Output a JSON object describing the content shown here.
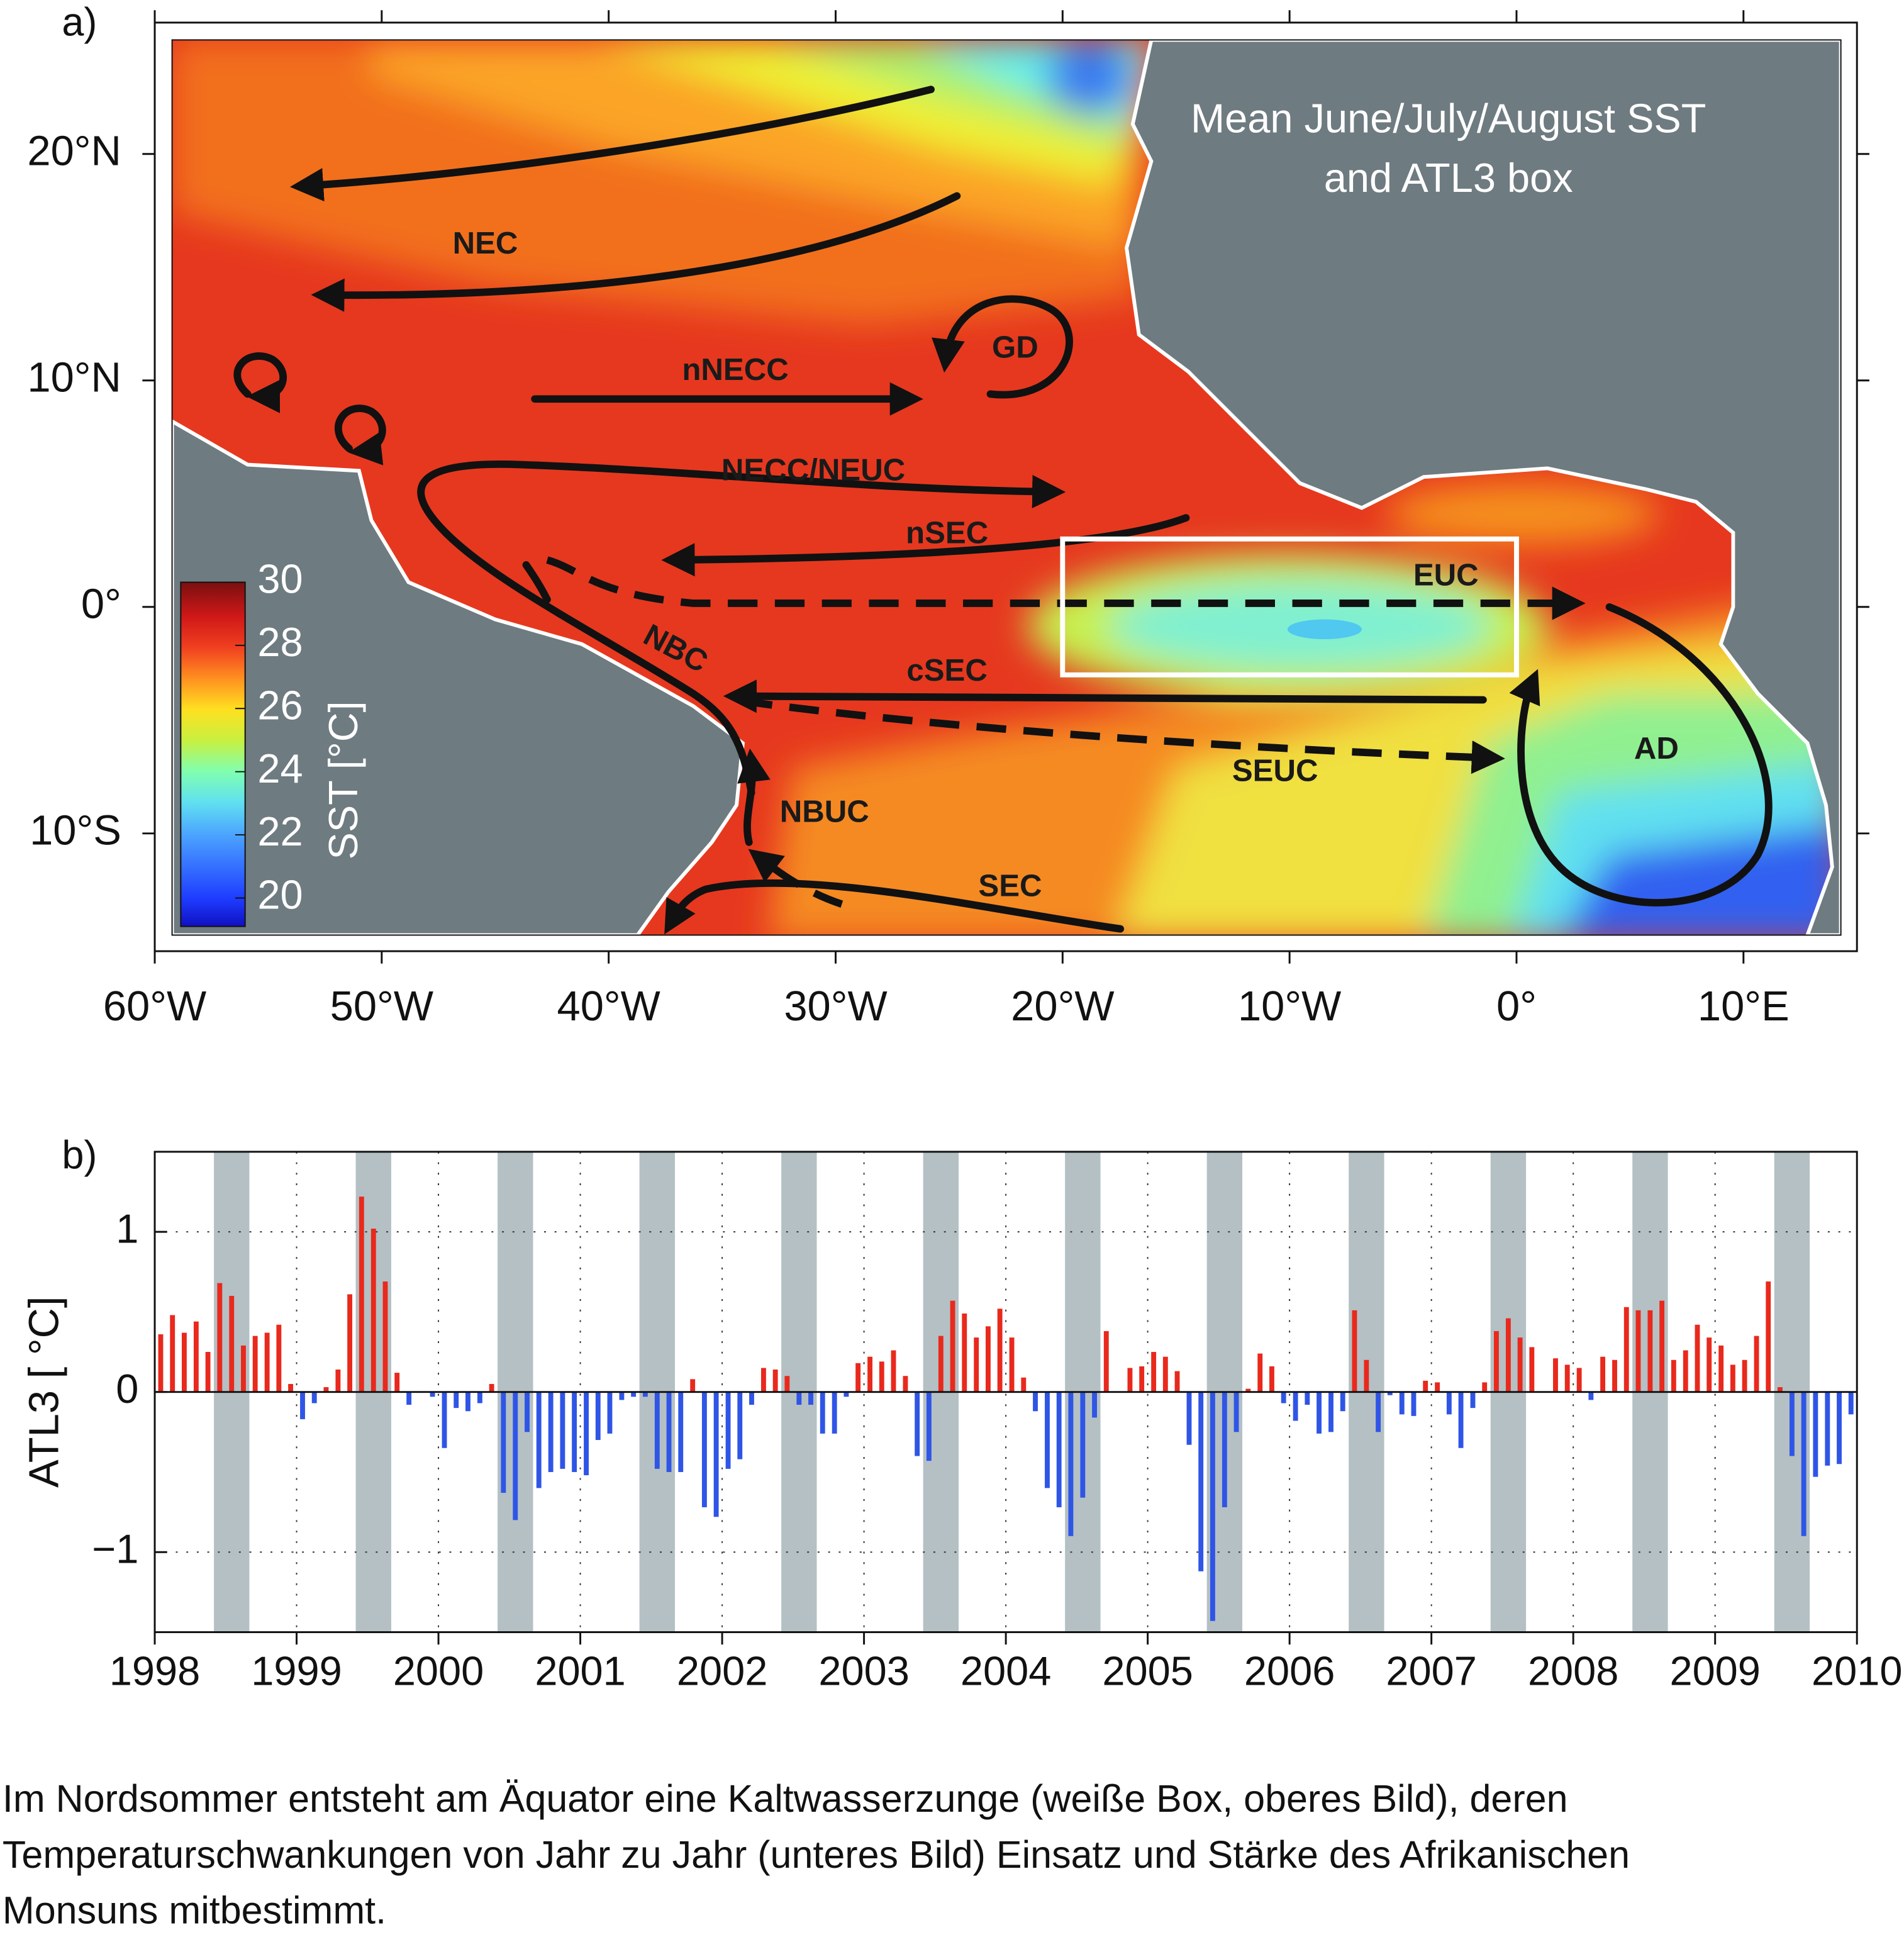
{
  "chart_data": [
    {
      "type": "map",
      "panel_label": "a)",
      "title": [
        "Mean June/July/August SST",
        "and ATL3 box"
      ],
      "xlim": [
        -60,
        15
      ],
      "xticks": [
        {
          "value": -60,
          "label": "60°W"
        },
        {
          "value": -50,
          "label": "50°W"
        },
        {
          "value": -40,
          "label": "40°W"
        },
        {
          "value": -30,
          "label": "30°W"
        },
        {
          "value": -20,
          "label": "20°W"
        },
        {
          "value": -10,
          "label": "10°W"
        },
        {
          "value": 0,
          "label": "0°"
        },
        {
          "value": 10,
          "label": "10°E"
        }
      ],
      "ylim": [
        -15.2,
        25.8
      ],
      "yticks": [
        {
          "value": -10,
          "label": "10°S"
        },
        {
          "value": 0,
          "label": "0°"
        },
        {
          "value": 10,
          "label": "10°N"
        },
        {
          "value": 20,
          "label": "20°N"
        }
      ],
      "colorbar": {
        "label": "SST [°C]",
        "lim": [
          19.1,
          30
        ],
        "ticks": [
          20,
          22,
          24,
          26,
          28,
          30
        ]
      },
      "box": {
        "xlim": [
          -20,
          0
        ],
        "ylim": [
          -3,
          3
        ],
        "color": "#ffffff"
      },
      "annotations": [
        "NEC",
        "GD",
        "nNECC",
        "NECC/NEUC",
        "nSEC",
        "EUC",
        "NBC",
        "cSEC",
        "SEUC",
        "AD",
        "NBUC",
        "SEC"
      ]
    },
    {
      "type": "bar",
      "panel_label": "b)",
      "ylabel": "ATL3 [ °C]",
      "xlim": [
        1998,
        2010
      ],
      "xticks": [
        1998,
        1999,
        2000,
        2001,
        2002,
        2003,
        2004,
        2005,
        2006,
        2007,
        2008,
        2009,
        2010
      ],
      "ylim": [
        -1.5,
        1.5
      ],
      "yticks": [
        {
          "value": -1,
          "label": "−1"
        },
        0,
        1
      ],
      "grid": true,
      "colors": {
        "positive": "#e8291c",
        "negative": "#2f55e6"
      },
      "shade_color": "#b4c0c4",
      "shaded": [
        [
          1998.417,
          1998.667
        ],
        [
          1999.417,
          1999.667
        ],
        [
          2000.417,
          2000.667
        ],
        [
          2001.417,
          2001.667
        ],
        [
          2002.417,
          2002.667
        ],
        [
          2003.417,
          2003.667
        ],
        [
          2004.417,
          2004.667
        ],
        [
          2005.417,
          2005.667
        ],
        [
          2006.417,
          2006.667
        ],
        [
          2007.417,
          2007.667
        ],
        [
          2008.417,
          2008.667
        ],
        [
          2009.417,
          2009.667
        ]
      ],
      "x": [
        1998.042,
        1998.125,
        1998.208,
        1998.292,
        1998.375,
        1998.458,
        1998.542,
        1998.625,
        1998.708,
        1998.792,
        1998.875,
        1998.958,
        1999.042,
        1999.125,
        1999.208,
        1999.292,
        1999.375,
        1999.458,
        1999.542,
        1999.625,
        1999.708,
        1999.792,
        1999.875,
        1999.958,
        2000.042,
        2000.125,
        2000.208,
        2000.292,
        2000.375,
        2000.458,
        2000.542,
        2000.625,
        2000.708,
        2000.792,
        2000.875,
        2000.958,
        2001.042,
        2001.125,
        2001.208,
        2001.292,
        2001.375,
        2001.458,
        2001.542,
        2001.625,
        2001.708,
        2001.792,
        2001.875,
        2001.958,
        2002.042,
        2002.125,
        2002.208,
        2002.292,
        2002.375,
        2002.458,
        2002.542,
        2002.625,
        2002.708,
        2002.792,
        2002.875,
        2002.958,
        2003.042,
        2003.125,
        2003.208,
        2003.292,
        2003.375,
        2003.458,
        2003.542,
        2003.625,
        2003.708,
        2003.792,
        2003.875,
        2003.958,
        2004.042,
        2004.125,
        2004.208,
        2004.292,
        2004.375,
        2004.458,
        2004.542,
        2004.625,
        2004.708,
        2004.792,
        2004.875,
        2004.958,
        2005.042,
        2005.125,
        2005.208,
        2005.292,
        2005.375,
        2005.458,
        2005.542,
        2005.625,
        2005.708,
        2005.792,
        2005.875,
        2005.958,
        2006.042,
        2006.125,
        2006.208,
        2006.292,
        2006.375,
        2006.458,
        2006.542,
        2006.625,
        2006.708,
        2006.792,
        2006.875,
        2006.958,
        2007.042,
        2007.125,
        2007.208,
        2007.292,
        2007.375,
        2007.458,
        2007.542,
        2007.625,
        2007.708,
        2007.792,
        2007.875,
        2007.958,
        2008.042,
        2008.125,
        2008.208,
        2008.292,
        2008.375,
        2008.458,
        2008.542,
        2008.625,
        2008.708,
        2008.792,
        2008.875,
        2008.958,
        2009.042,
        2009.125,
        2009.208,
        2009.292,
        2009.375,
        2009.458,
        2009.542,
        2009.625,
        2009.708,
        2009.792,
        2009.875,
        2009.958
      ],
      "values": [
        0.36,
        0.48,
        0.37,
        0.44,
        0.25,
        0.68,
        0.6,
        0.29,
        0.35,
        0.37,
        0.42,
        0.05,
        -0.17,
        -0.07,
        0.03,
        0.14,
        0.61,
        1.22,
        1.02,
        0.69,
        0.12,
        -0.08,
        0,
        -0.03,
        -0.35,
        -0.1,
        -0.12,
        -0.07,
        0.05,
        -0.63,
        -0.8,
        -0.25,
        -0.6,
        -0.5,
        -0.48,
        -0.5,
        -0.52,
        -0.3,
        -0.26,
        -0.05,
        -0.03,
        -0.03,
        -0.48,
        -0.5,
        -0.5,
        0.08,
        -0.72,
        -0.78,
        -0.48,
        -0.42,
        -0.08,
        0.15,
        0.14,
        0.1,
        -0.08,
        -0.08,
        -0.26,
        -0.26,
        -0.03,
        0.18,
        0.22,
        0.19,
        0.26,
        0.1,
        -0.4,
        -0.43,
        0.35,
        0.57,
        0.49,
        0.34,
        0.41,
        0.52,
        0.34,
        0.09,
        -0.12,
        -0.6,
        -0.72,
        -0.9,
        -0.66,
        -0.16,
        0.38,
        0,
        0.15,
        0.16,
        0.25,
        0.22,
        0.13,
        -0.33,
        -1.12,
        -1.43,
        -0.72,
        -0.25,
        0.02,
        0.24,
        0.16,
        -0.07,
        -0.18,
        -0.08,
        -0.26,
        -0.25,
        -0.12,
        0.51,
        0.2,
        -0.25,
        -0.02,
        -0.14,
        -0.15,
        0.07,
        0.06,
        -0.14,
        -0.35,
        -0.1,
        0.06,
        0.38,
        0.46,
        0.34,
        0.28,
        0,
        0.21,
        0.17,
        0.15,
        -0.05,
        0.22,
        0.2,
        0.53,
        0.51,
        0.51,
        0.57,
        0.2,
        0.26,
        0.42,
        0.34,
        0.29,
        0.17,
        0.2,
        0.35,
        0.69,
        0.03,
        -0.4,
        -0.9,
        -0.53,
        -0.46,
        -0.45,
        -0.14
      ]
    }
  ],
  "caption": [
    "Im Nordsommer entsteht am Äquator eine Kaltwasserzunge (weiße Box, oberes Bild), deren",
    "Temperaturschwankungen von Jahr zu Jahr (unteres Bild) Einsatz und Stärke des Afrikanischen",
    "Monsuns mitbestimmt."
  ]
}
